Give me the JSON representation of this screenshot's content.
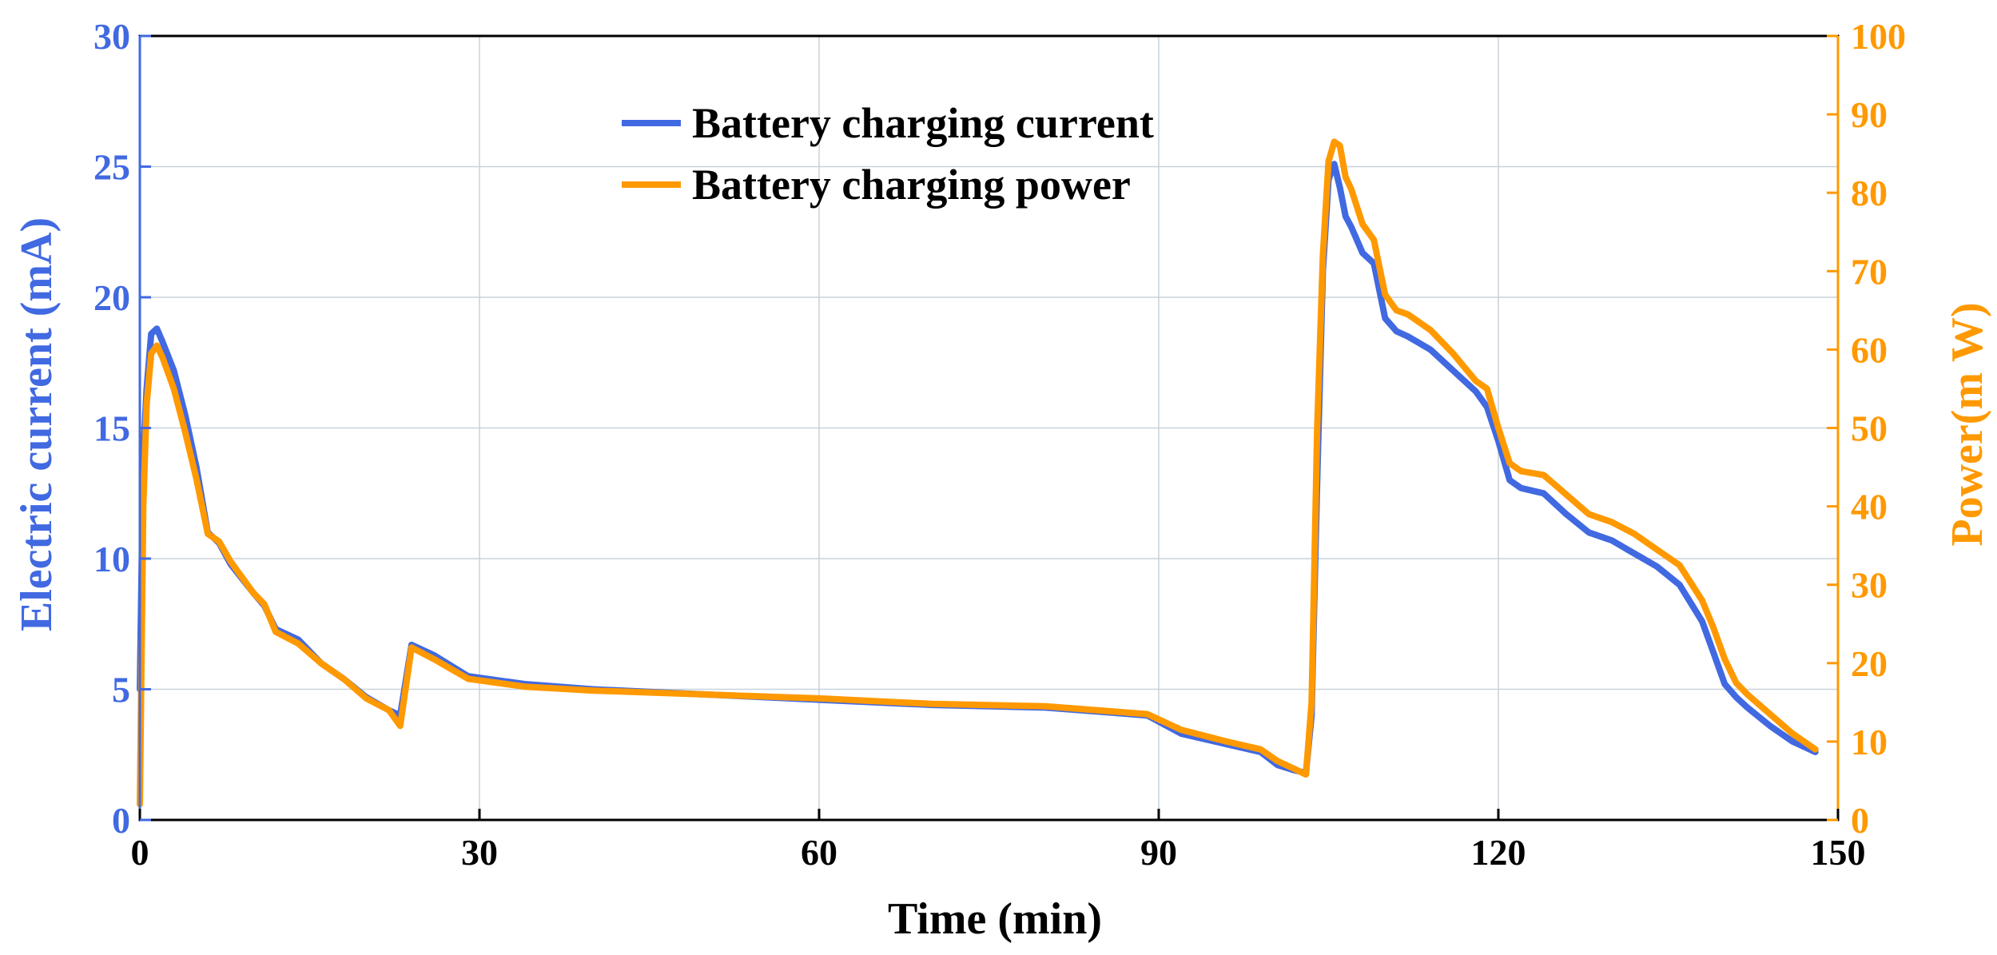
{
  "chart_data": {
    "type": "line",
    "title": "",
    "xlabel": "Time (min)",
    "ylabel_left": "Electric current (mA)",
    "ylabel_right": "Power(m W)",
    "xlim": [
      0,
      150
    ],
    "ylim_left": [
      0,
      30
    ],
    "ylim_right": [
      0,
      100
    ],
    "xticks": [
      0,
      30,
      60,
      90,
      120,
      150
    ],
    "yticks_left": [
      0,
      5,
      10,
      15,
      20,
      25,
      30
    ],
    "yticks_right": [
      0,
      10,
      20,
      30,
      40,
      50,
      60,
      70,
      80,
      90,
      100
    ],
    "grid": true,
    "legend_position": "top-center",
    "colors": {
      "current": "#4169E1",
      "power": "#FF9900",
      "grid": "#C8D2DC",
      "axis": "#000000"
    },
    "series": [
      {
        "name": "Battery charging current",
        "axis": "left",
        "x": [
          0,
          0.3,
          0.6,
          1.0,
          1.5,
          2.0,
          3.0,
          4.0,
          5.0,
          6.0,
          7.0,
          8.0,
          10.0,
          11.0,
          12.0,
          14.0,
          16.0,
          18.0,
          20.0,
          22.0,
          23.0,
          24.0,
          26.0,
          29.0,
          34.0,
          40.0,
          50.0,
          60.0,
          70.0,
          80.0,
          89.0,
          92.0,
          96.0,
          99.0,
          100.5,
          102.0,
          103.0,
          103.5,
          104.0,
          104.5,
          105.0,
          105.5,
          106.0,
          106.5,
          107.0,
          108.0,
          109.0,
          110.0,
          111.0,
          112.0,
          114.0,
          116.0,
          118.0,
          119.0,
          120.0,
          121.0,
          122.0,
          124.0,
          126.0,
          128.0,
          130.0,
          132.0,
          134.0,
          136.0,
          138.0,
          139.0,
          140.0,
          141.0,
          142.0,
          144.0,
          146.0,
          148.0
        ],
        "values": [
          5.0,
          14.0,
          16.5,
          18.6,
          18.8,
          18.3,
          17.2,
          15.5,
          13.5,
          11.0,
          10.6,
          9.8,
          8.7,
          8.2,
          7.3,
          6.9,
          6.0,
          5.4,
          4.7,
          4.2,
          4.0,
          6.7,
          6.3,
          5.5,
          5.2,
          5.0,
          4.8,
          4.6,
          4.4,
          4.3,
          4.0,
          3.3,
          2.9,
          2.6,
          2.1,
          1.9,
          1.8,
          4.0,
          13.0,
          21.0,
          24.5,
          25.1,
          24.2,
          23.1,
          22.7,
          21.7,
          21.3,
          19.2,
          18.7,
          18.5,
          18.0,
          17.2,
          16.4,
          15.8,
          14.5,
          13.0,
          12.7,
          12.5,
          11.7,
          11.0,
          10.7,
          10.2,
          9.7,
          9.0,
          7.6,
          6.4,
          5.2,
          4.7,
          4.3,
          3.6,
          3.0,
          2.6
        ]
      },
      {
        "name": "Battery charging power",
        "axis": "right",
        "x": [
          0,
          0.3,
          0.6,
          1.0,
          1.5,
          2.0,
          3.0,
          4.0,
          5.0,
          6.0,
          7.0,
          8.0,
          10.0,
          11.0,
          12.0,
          14.0,
          16.0,
          18.0,
          20.0,
          22.0,
          23.0,
          24.0,
          26.0,
          29.0,
          34.0,
          40.0,
          50.0,
          60.0,
          70.0,
          80.0,
          89.0,
          92.0,
          96.0,
          99.0,
          100.5,
          102.0,
          103.0,
          103.5,
          104.0,
          104.5,
          105.0,
          105.5,
          106.0,
          106.5,
          107.0,
          108.0,
          109.0,
          110.0,
          111.0,
          112.0,
          114.0,
          116.0,
          118.0,
          119.0,
          120.0,
          121.0,
          122.0,
          124.0,
          126.0,
          128.0,
          130.0,
          132.0,
          134.0,
          136.0,
          138.0,
          139.0,
          140.0,
          141.0,
          142.0,
          144.0,
          146.0,
          148.0
        ],
        "values": [
          2.0,
          40.0,
          53.0,
          59.5,
          60.5,
          59.0,
          55.0,
          49.5,
          43.5,
          36.5,
          35.5,
          33.0,
          29.0,
          27.5,
          24.0,
          22.5,
          20.0,
          18.0,
          15.5,
          14.0,
          12.0,
          22.0,
          20.5,
          18.0,
          17.0,
          16.5,
          16.0,
          15.5,
          14.8,
          14.5,
          13.5,
          11.5,
          10.0,
          9.0,
          7.5,
          6.5,
          5.8,
          15.0,
          50.0,
          72.0,
          84.0,
          86.5,
          86.0,
          82.0,
          80.5,
          76.0,
          74.0,
          67.0,
          65.0,
          64.5,
          62.5,
          59.5,
          56.0,
          55.0,
          50.0,
          45.5,
          44.5,
          44.0,
          41.5,
          39.0,
          38.0,
          36.5,
          34.5,
          32.5,
          28.0,
          24.5,
          20.5,
          17.5,
          16.0,
          13.5,
          11.0,
          9.0
        ]
      }
    ]
  }
}
